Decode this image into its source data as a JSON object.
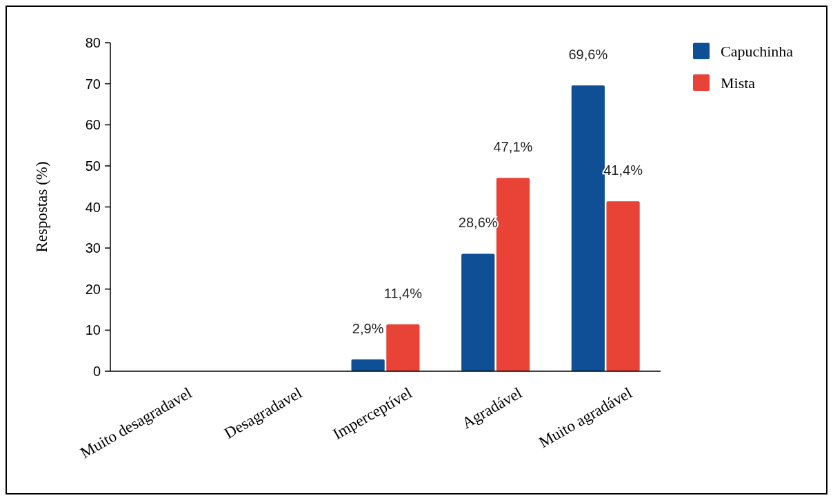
{
  "chart_data": {
    "type": "bar",
    "ylabel": "Respostas (%)",
    "categories": [
      "Muito desagradavel",
      "Desagradavel",
      "Imperceptível",
      "Agradável",
      "Muito agradável"
    ],
    "series": [
      {
        "name": "Capuchinha",
        "color": "#0f4f96",
        "values": [
          0,
          0,
          2.9,
          28.6,
          69.6
        ],
        "value_labels": [
          null,
          null,
          "2,9%",
          "28,6%",
          "69,6%"
        ]
      },
      {
        "name": "Mista",
        "color": "#e84336",
        "values": [
          0,
          0,
          11.4,
          47.1,
          41.4
        ],
        "value_labels": [
          null,
          null,
          "11,4%",
          "47,1%",
          "41,4%"
        ]
      }
    ],
    "ylim": [
      0,
      80
    ],
    "yticks": [
      0,
      10,
      20,
      30,
      40,
      50,
      60,
      70,
      80
    ],
    "grid": false,
    "legend": "top right"
  }
}
